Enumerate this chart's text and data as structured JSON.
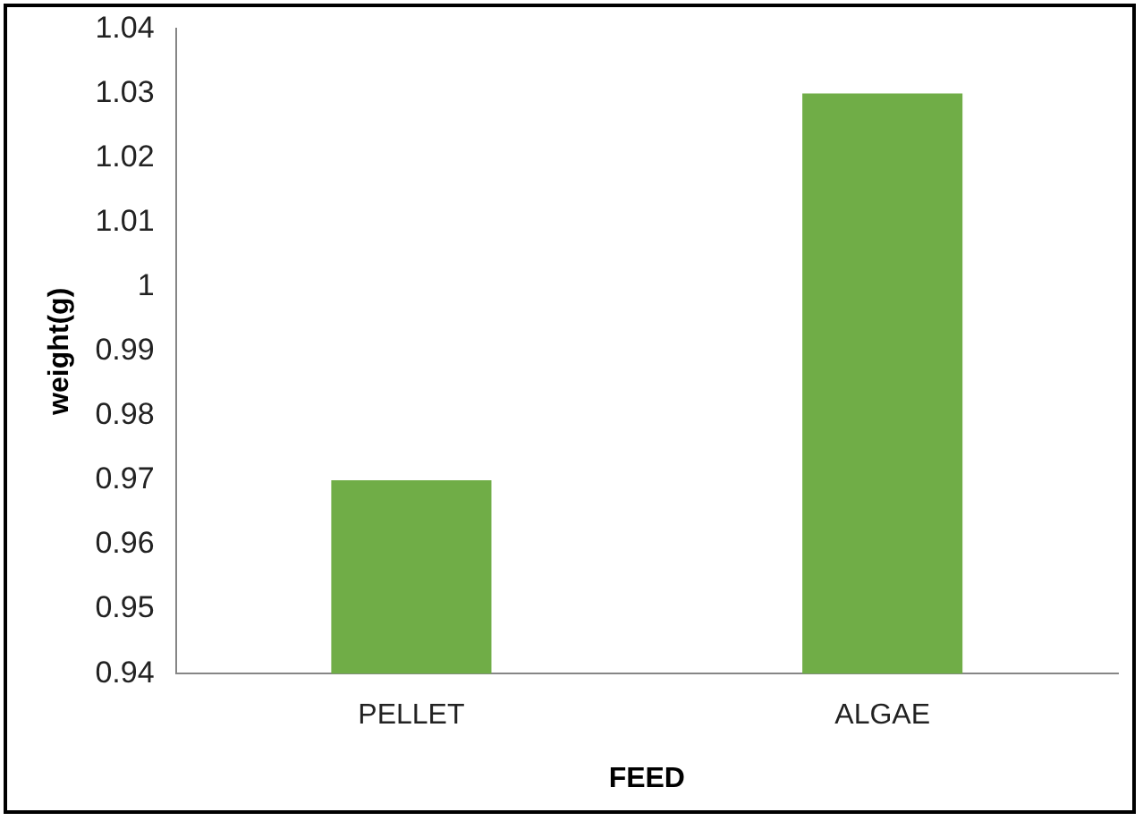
{
  "chart_data": {
    "type": "bar",
    "xlabel": "FEED",
    "ylabel": "weight(g)",
    "categories": [
      "PELLET",
      "ALGAE"
    ],
    "values": [
      0.97,
      1.03
    ],
    "color": "#70ad47",
    "ylim": [
      0.94,
      1.04
    ],
    "yticks": [
      0.94,
      0.95,
      0.96,
      0.97,
      0.98,
      0.99,
      1,
      1.01,
      1.02,
      1.03,
      1.04
    ],
    "grid": false,
    "legend": false
  }
}
